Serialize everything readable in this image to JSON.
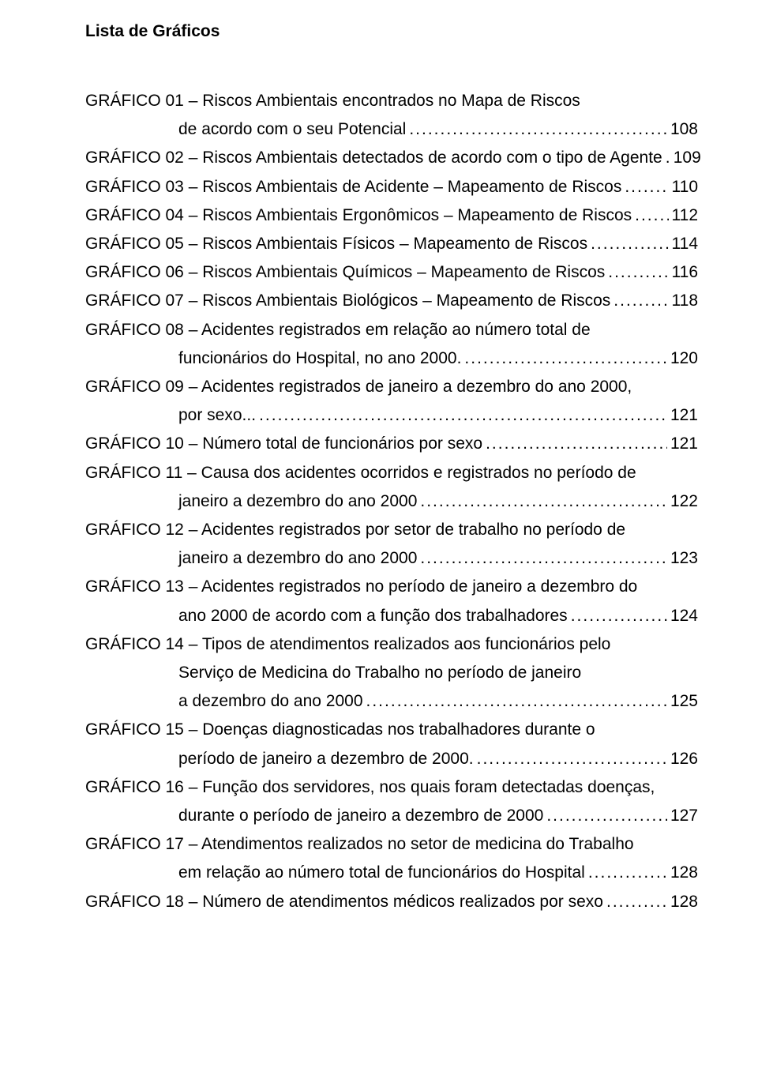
{
  "title": "Lista de Gráficos",
  "entries": [
    {
      "lines": [
        {
          "text": "GRÁFICO 01 – Riscos Ambientais encontrados no Mapa de Riscos",
          "indent": false,
          "leader": false,
          "page": ""
        },
        {
          "text": "de acordo com o seu Potencial",
          "indent": true,
          "leader": true,
          "page": " 108"
        }
      ]
    },
    {
      "lines": [
        {
          "text": "GRÁFICO 02 – Riscos Ambientais detectados de acordo com o tipo de Agente",
          "indent": false,
          "leader": true,
          "page": " 109"
        }
      ]
    },
    {
      "lines": [
        {
          "text": "GRÁFICO 03 – Riscos Ambientais de Acidente – Mapeamento de Riscos",
          "indent": false,
          "leader": true,
          "page": " 110"
        }
      ]
    },
    {
      "lines": [
        {
          "text": "GRÁFICO 04 – Riscos Ambientais Ergonômicos – Mapeamento de Riscos",
          "indent": false,
          "leader": true,
          "page": " 112"
        }
      ]
    },
    {
      "lines": [
        {
          "text": "GRÁFICO 05 – Riscos Ambientais Físicos – Mapeamento de Riscos",
          "indent": false,
          "leader": true,
          "page": " 114"
        }
      ]
    },
    {
      "lines": [
        {
          "text": "GRÁFICO 06 – Riscos Ambientais Químicos – Mapeamento de Riscos",
          "indent": false,
          "leader": true,
          "page": " 116"
        }
      ]
    },
    {
      "lines": [
        {
          "text": "GRÁFICO 07 – Riscos Ambientais Biológicos – Mapeamento de Riscos",
          "indent": false,
          "leader": true,
          "page": " 118"
        }
      ]
    },
    {
      "lines": [
        {
          "text": "GRÁFICO 08 – Acidentes registrados em relação ao número total de",
          "indent": false,
          "leader": false,
          "page": ""
        },
        {
          "text": "funcionários do Hospital, no ano 2000.",
          "indent": true,
          "leader": true,
          "page": " 120"
        }
      ]
    },
    {
      "lines": [
        {
          "text": "GRÁFICO 09 – Acidentes registrados de janeiro a dezembro do ano 2000,",
          "indent": false,
          "leader": false,
          "page": ""
        },
        {
          "text": "por sexo...",
          "indent": true,
          "leader": true,
          "page": " 121"
        }
      ]
    },
    {
      "lines": [
        {
          "text": "GRÁFICO 10 – Número total de funcionários por sexo",
          "indent": false,
          "leader": true,
          "page": " 121"
        }
      ]
    },
    {
      "lines": [
        {
          "text": "GRÁFICO 11 – Causa dos acidentes ocorridos e registrados no período de",
          "indent": false,
          "leader": false,
          "page": ""
        },
        {
          "text": "janeiro a dezembro do ano 2000",
          "indent": true,
          "leader": true,
          "page": " 122"
        }
      ]
    },
    {
      "lines": [
        {
          "text": "GRÁFICO 12 – Acidentes registrados por setor de trabalho no período de",
          "indent": false,
          "leader": false,
          "page": ""
        },
        {
          "text": "janeiro a dezembro do ano 2000",
          "indent": true,
          "leader": true,
          "page": " 123"
        }
      ]
    },
    {
      "lines": [
        {
          "text": "GRÁFICO 13 – Acidentes registrados no período de janeiro a dezembro do",
          "indent": false,
          "leader": false,
          "page": ""
        },
        {
          "text": "ano 2000 de acordo com a função dos trabalhadores",
          "indent": true,
          "leader": true,
          "page": " 124"
        }
      ]
    },
    {
      "lines": [
        {
          "text": "GRÁFICO 14 – Tipos de atendimentos realizados aos funcionários pelo",
          "indent": false,
          "leader": false,
          "page": ""
        },
        {
          "text": "Serviço de  Medicina do Trabalho no período de janeiro",
          "indent": true,
          "leader": false,
          "page": ""
        },
        {
          "text": "a dezembro do ano 2000",
          "indent": true,
          "leader": true,
          "page": " 125"
        }
      ]
    },
    {
      "lines": [
        {
          "text": "GRÁFICO 15 – Doenças diagnosticadas nos trabalhadores durante o",
          "indent": false,
          "leader": false,
          "page": ""
        },
        {
          "text": "período de janeiro a dezembro de 2000.",
          "indent": true,
          "leader": true,
          "page": " 126"
        }
      ]
    },
    {
      "lines": [
        {
          "text": "GRÁFICO 16 – Função dos servidores, nos quais foram detectadas doenças,",
          "indent": false,
          "leader": false,
          "page": ""
        },
        {
          "text": "durante o período de janeiro a dezembro de 2000",
          "indent": true,
          "leader": true,
          "page": " 127"
        }
      ]
    },
    {
      "lines": [
        {
          "text": "GRÁFICO 17 – Atendimentos realizados no setor de medicina do Trabalho",
          "indent": false,
          "leader": false,
          "page": ""
        },
        {
          "text": "em relação ao número total de funcionários do Hospital",
          "indent": true,
          "leader": true,
          "page": " 128"
        }
      ]
    },
    {
      "lines": [
        {
          "text": "GRÁFICO 18 – Número de atendimentos médicos realizados por sexo",
          "indent": false,
          "leader": true,
          "page": " 128"
        }
      ]
    }
  ]
}
